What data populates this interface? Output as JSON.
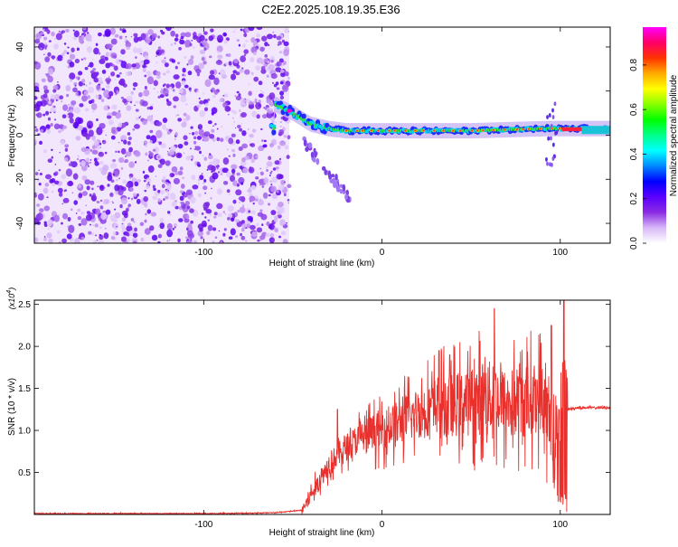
{
  "title": "C2E2.2025.108.19.35.E36",
  "spectrogram": {
    "xlabel": "Height of straight line (km)",
    "ylabel": "Frequency (Hz)",
    "xticks": [
      -100,
      0,
      100
    ],
    "yticks": [
      -40,
      -20,
      0,
      20,
      40
    ],
    "xlim": [
      -195,
      128
    ],
    "ylim": [
      -49,
      49
    ]
  },
  "colorbar": {
    "label": "Normalized spectral amplitude",
    "ticks": [
      "0.0",
      "0.2",
      "0.4",
      "0.6",
      "0.8"
    ],
    "range": [
      0,
      0.97
    ],
    "colors": [
      "#ffffff",
      "#d8b8f8",
      "#8a2be2",
      "#5a00ff",
      "#0000ff",
      "#0088ff",
      "#00ffff",
      "#00ff88",
      "#00ff00",
      "#88ff00",
      "#ffff00",
      "#ffaa00",
      "#ff3300",
      "#ff0066",
      "#ff00ff"
    ]
  },
  "snr_panel": {
    "xlabel": "Height of straight line (km)",
    "ylabel": "SNR (10 * v/v)",
    "multiplier_base": "(x10",
    "multiplier_exp": "4",
    "multiplier_close": ")",
    "xticks": [
      -100,
      0,
      100
    ],
    "yticks": [
      "0.5",
      "1.0",
      "1.5",
      "2.0",
      "2.5"
    ],
    "line_color": "#e8302c"
  },
  "chart_data": [
    {
      "type": "heatmap",
      "title": "C2E2.2025.108.19.35.E36",
      "xlabel": "Height of straight line (km)",
      "ylabel": "Frequency (Hz)",
      "xlim": [
        -195,
        128
      ],
      "ylim": [
        -49,
        49
      ],
      "colorbar_label": "Normalized spectral amplitude",
      "colorbar_range": [
        0,
        0.97
      ],
      "features": {
        "noise_region_x": [
          -195,
          -52
        ],
        "transition_x": [
          -60,
          -20
        ],
        "signal_band_x": [
          -38,
          128
        ],
        "signal_band_freq": 2,
        "signal_band_peak_amplitude": 0.95
      },
      "signal_band": [
        {
          "x": -60,
          "freq": 14
        },
        {
          "x": -50,
          "freq": 10
        },
        {
          "x": -40,
          "freq": 5
        },
        {
          "x": -30,
          "freq": 3
        },
        {
          "x": -20,
          "freq": 2
        },
        {
          "x": 0,
          "freq": 2
        },
        {
          "x": 50,
          "freq": 2
        },
        {
          "x": 93,
          "freq": 3
        },
        {
          "x": 128,
          "freq": 3
        }
      ]
    },
    {
      "type": "line",
      "xlabel": "Height of straight line (km)",
      "ylabel": "SNR (10 * v/v)",
      "y_multiplier": 10000,
      "xlim": [
        -195,
        128
      ],
      "ylim": [
        0,
        2.55
      ],
      "series": [
        {
          "x": [
            -195,
            -150,
            -100,
            -60,
            -45,
            -35,
            -30,
            -20,
            -10,
            0,
            10,
            20,
            30,
            40,
            50,
            60,
            70,
            80,
            90,
            95,
            100,
            104,
            110,
            128
          ],
          "y": [
            0.01,
            0.01,
            0.01,
            0.02,
            0.05,
            0.4,
            0.6,
            0.8,
            0.95,
            1.0,
            1.1,
            1.2,
            1.3,
            1.3,
            1.35,
            1.4,
            1.3,
            1.35,
            1.4,
            1.0,
            1.5,
            1.25,
            1.27,
            1.27
          ],
          "peaks": [
            {
              "x": -25,
              "y": 1.25
            },
            {
              "x": 32,
              "y": 1.95
            },
            {
              "x": 38,
              "y": 1.9
            },
            {
              "x": 63,
              "y": 2.45
            },
            {
              "x": 95,
              "y": 2.25
            },
            {
              "x": 102,
              "y": 2.62
            }
          ]
        }
      ]
    }
  ]
}
